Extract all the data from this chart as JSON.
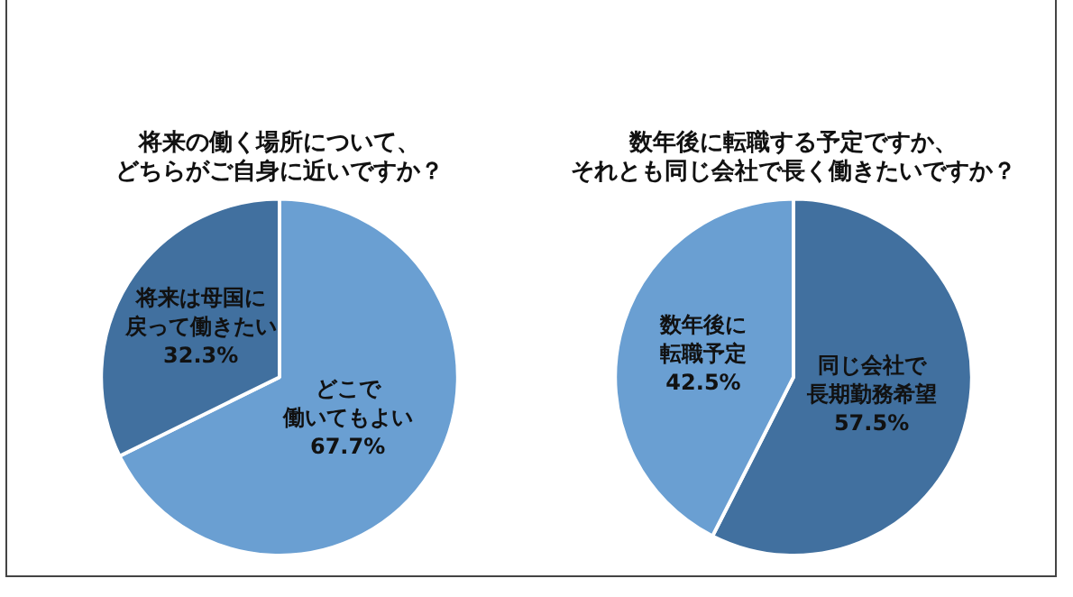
{
  "chart_data": [
    {
      "type": "pie",
      "title": "将来の働く場所について、どちらがご自身に近いですか？",
      "categories": [
        "どこで働いてもよい",
        "将来は母国に戻って働きたい"
      ],
      "values": [
        67.7,
        32.3
      ],
      "colors": [
        "#6a9fd2",
        "#41709f"
      ],
      "value_labels": [
        "67.7%",
        "32.3%"
      ],
      "legend": false
    },
    {
      "type": "pie",
      "title": "数年後に転職する予定ですか、それとも同じ会社で長く働きたいですか？",
      "categories": [
        "同じ会社で長期勤務希望",
        "数年後に転職予定"
      ],
      "values": [
        57.5,
        42.5
      ],
      "colors": [
        "#41709f",
        "#6a9fd2"
      ],
      "value_labels": [
        "57.5%",
        "42.5%"
      ],
      "legend": false
    }
  ]
}
